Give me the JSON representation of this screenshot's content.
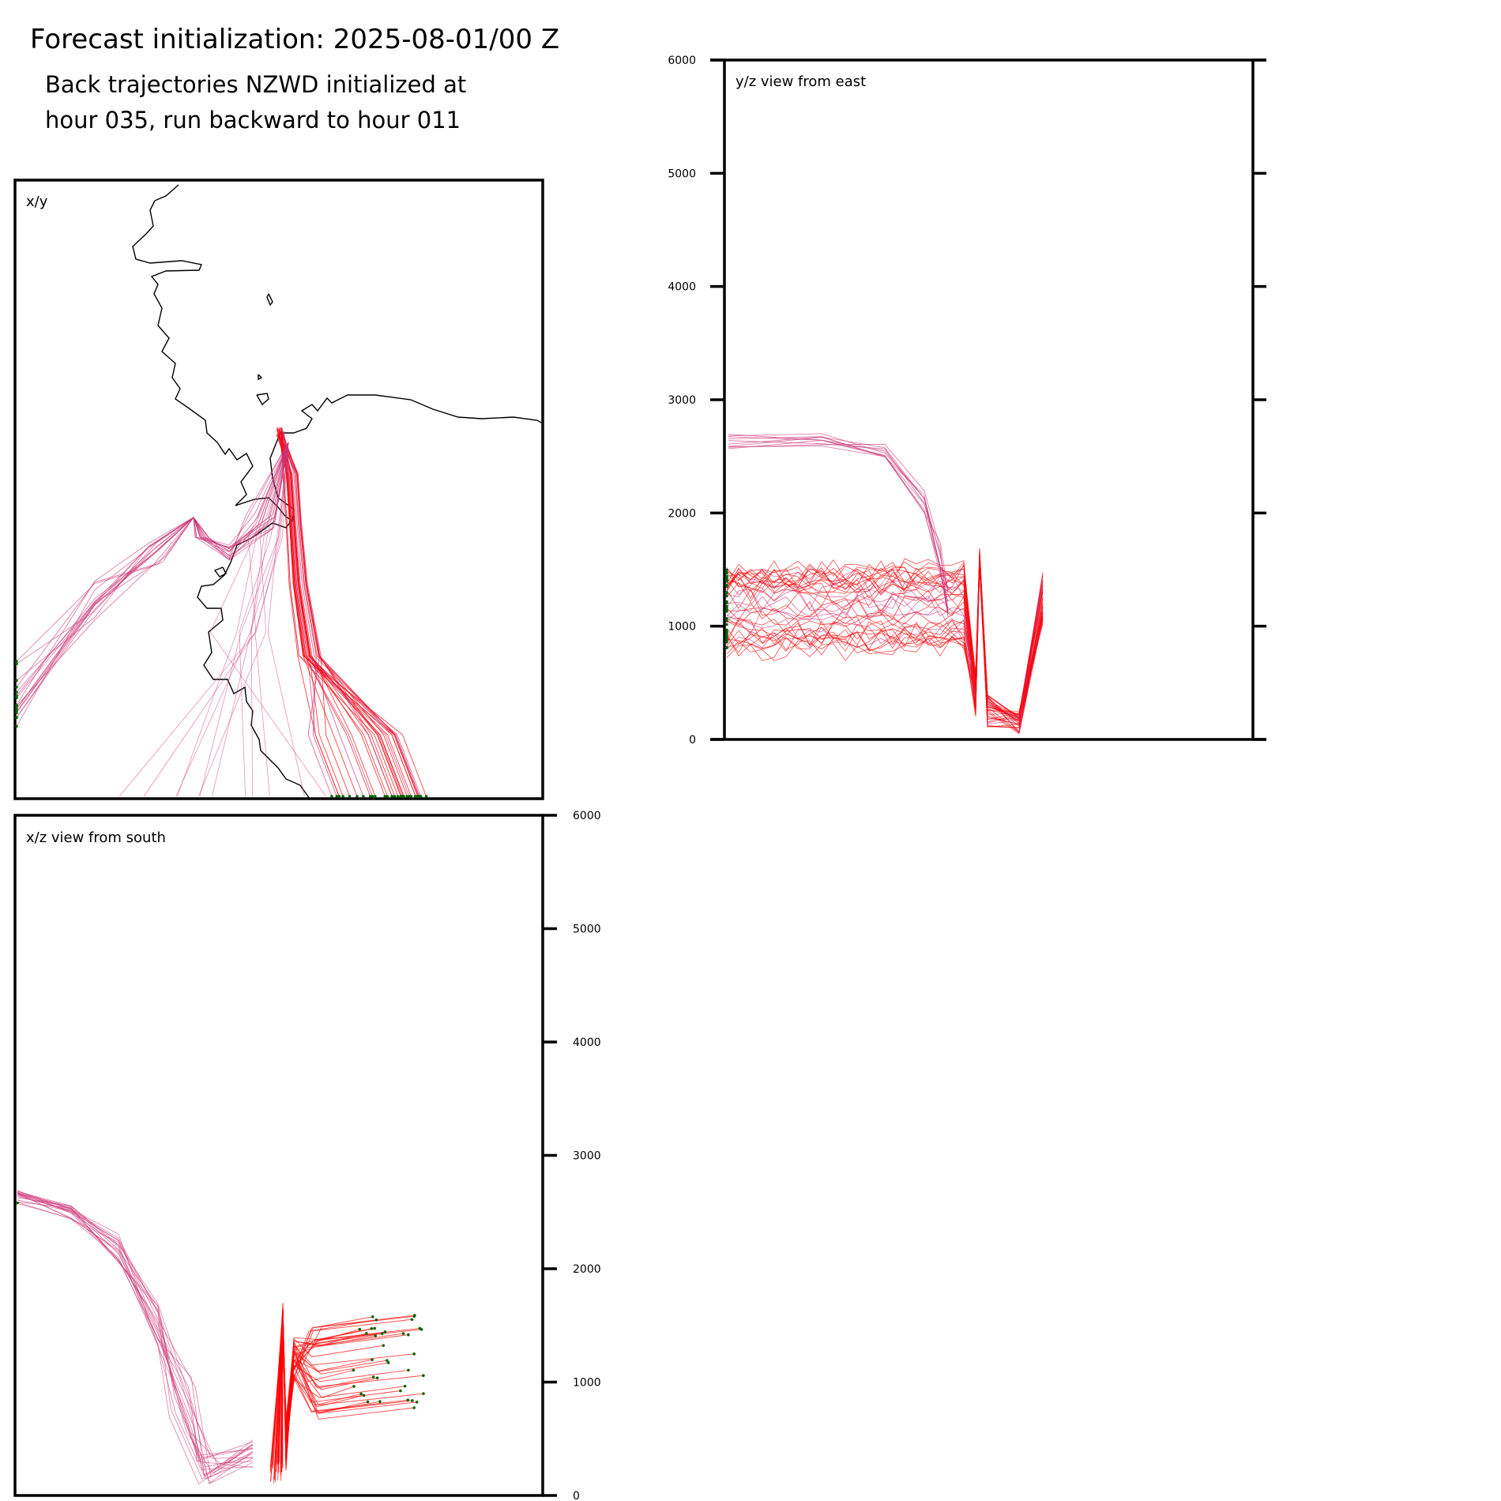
{
  "header": {
    "title": "Forecast initialization: 2025-08-01/00 Z",
    "subtitle_line1": "Back trajectories NZWD initialized at",
    "subtitle_line2": "hour 035, run backward to hour 011"
  },
  "colors": {
    "trajectory_main": "#ff0000",
    "trajectory_secondary": "#cc3377",
    "endpoint_marker": "#006600",
    "coastline": "#000000",
    "frame": "#000000"
  },
  "chart_data": [
    {
      "type": "line",
      "panel": "x/y",
      "title": "x/y",
      "xlabel": "",
      "ylabel": "",
      "note_visible_features": [
        "coastline",
        "trajectory bundle",
        "endpoint markers"
      ]
    },
    {
      "type": "line",
      "panel": "y/z",
      "title": "y/z view from east",
      "xlabel": "",
      "ylabel": "",
      "ylim": [
        0,
        6000
      ],
      "yticks": [
        0,
        1000,
        2000,
        3000,
        4000,
        5000,
        6000
      ],
      "ytick_labels": [
        "0",
        "1000",
        "2000",
        "3000",
        "4000",
        "5000",
        "6000"
      ],
      "ytick_side": "left"
    },
    {
      "type": "line",
      "panel": "x/z",
      "title": "x/z view from south",
      "xlabel": "",
      "ylabel": "",
      "ylim": [
        0,
        6000
      ],
      "yticks": [
        0,
        1000,
        2000,
        3000,
        4000,
        5000,
        6000
      ],
      "ytick_labels": [
        "0",
        "1000",
        "2000",
        "3000",
        "4000",
        "5000",
        "6000"
      ],
      "ytick_side": "right"
    }
  ]
}
